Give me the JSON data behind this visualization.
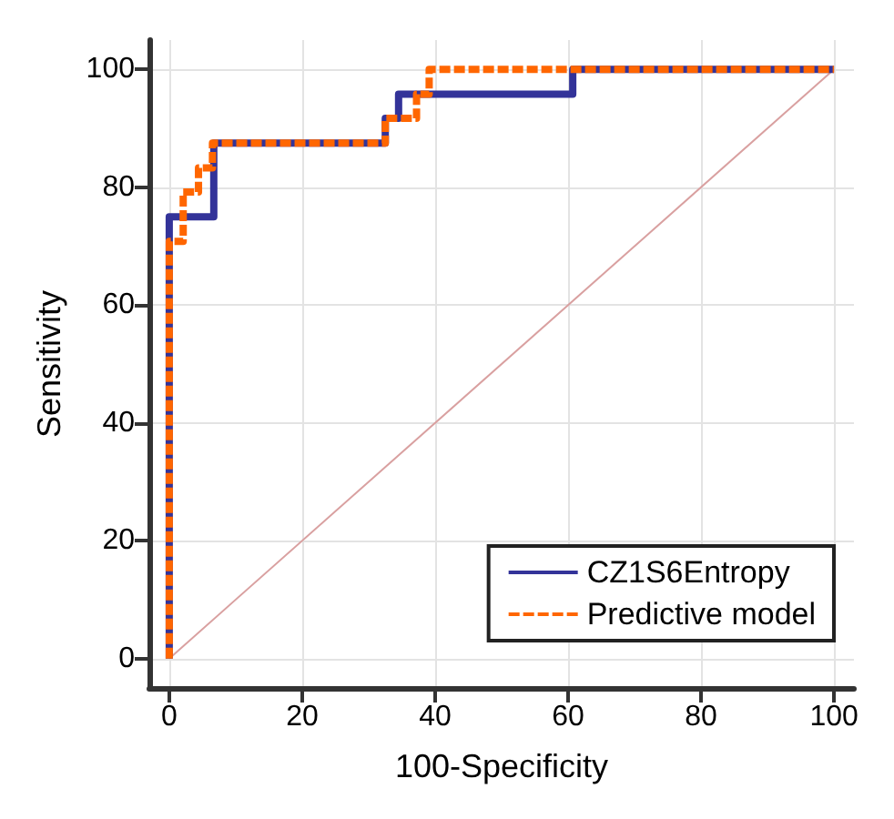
{
  "chart_data": {
    "type": "step",
    "xlabel": "100-Specificity",
    "ylabel": "Sensitivity",
    "xlim": [
      -3,
      103
    ],
    "ylim": [
      -5,
      105
    ],
    "xticks": [
      0,
      20,
      40,
      60,
      80,
      100
    ],
    "yticks": [
      0,
      20,
      40,
      60,
      80,
      100
    ],
    "grid": true,
    "legend": "bottom right",
    "marker": "none",
    "series": [
      {
        "name": "CZ1S6Entropy",
        "color": "#333399",
        "line_style": "solid",
        "x": [
          0,
          0,
          6.7,
          32.5,
          34.5,
          60.7,
          100
        ],
        "values": [
          0,
          75,
          87.5,
          91.7,
          95.8,
          100,
          100
        ]
      },
      {
        "name": "Predictive model",
        "color": "#ff6600",
        "line_style": "dashed",
        "x": [
          0,
          0,
          2.1,
          4.4,
          6.5,
          32.5,
          37.2,
          39.1,
          100
        ],
        "values": [
          0,
          70.8,
          79.2,
          83.3,
          87.5,
          91.7,
          95.8,
          100,
          100
        ]
      },
      {
        "type": "line",
        "color": "#d9a0a0",
        "line_style": "solid",
        "x": [
          0,
          100
        ],
        "values": [
          0,
          100
        ]
      }
    ]
  }
}
